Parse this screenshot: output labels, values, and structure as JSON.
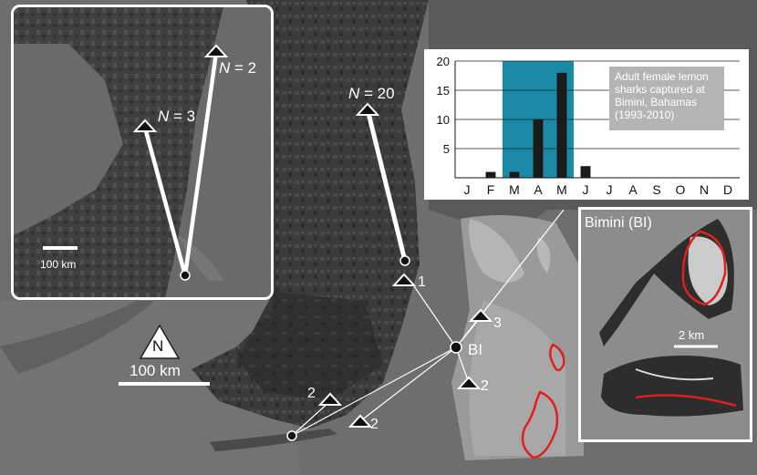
{
  "main_map": {
    "north_label": "N",
    "scale_label": "100 km",
    "hub_label": "BI",
    "site_labels": [
      "1",
      "3",
      "2",
      "2",
      "2"
    ],
    "track_label_prefix": "N",
    "track_label_value": "= 20"
  },
  "inset_florida": {
    "scale_label": "100 km",
    "track_labels": [
      {
        "prefix": "N",
        "value": "= 3"
      },
      {
        "prefix": "N",
        "value": "= 2"
      }
    ]
  },
  "chart_data": {
    "type": "bar",
    "categories": [
      "J",
      "F",
      "M",
      "A",
      "M",
      "J",
      "J",
      "A",
      "S",
      "O",
      "N",
      "D"
    ],
    "values": [
      0,
      1,
      1,
      10,
      18,
      2,
      0,
      0,
      0,
      0,
      0,
      0
    ],
    "yticks": [
      5,
      10,
      15,
      20
    ],
    "ylim": [
      0,
      20
    ],
    "highlight_months": [
      "M",
      "A",
      "M"
    ],
    "annotation": "Adult female lemon sharks captured at Bimini, Bahamas (1993-2010)",
    "annotation_lines": [
      "Adult female lemon",
      "sharks captured at",
      "Bimini, Bahamas",
      "(1993-2010)"
    ],
    "colors": {
      "highlight": "#1a8aa6",
      "bar": "#1a1a1a",
      "annotation_bg": "#b4b4b4"
    }
  },
  "bimini_inset": {
    "title": "Bimini (BI)",
    "scale_label": "2 km",
    "colors": {
      "outline": "#e02020"
    }
  },
  "colors": {
    "tracks": "#ffffff",
    "sea": "#6e6e6e",
    "land": "#3a3a3a"
  }
}
